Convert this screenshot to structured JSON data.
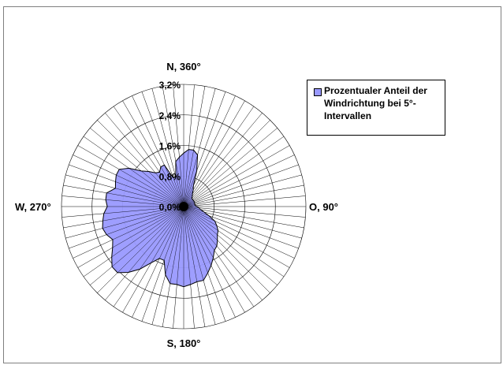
{
  "chart_data": {
    "type": "radar",
    "title": "",
    "direction_labels": {
      "north": "N, 360°",
      "east": "O, 90°",
      "south": "S, 180°",
      "west": "W, 270°"
    },
    "radial_ticks": [
      "0,0%",
      "0,8%",
      "1,6%",
      "2,4%",
      "3,2%"
    ],
    "radial_tick_values": [
      0,
      0.8,
      1.6,
      2.4,
      3.2
    ],
    "rlim": [
      0,
      3.2
    ],
    "angle_step_deg": 5,
    "series": [
      {
        "name": "Prozentualer Anteil der Windrichtung bei 5°-Intervallen",
        "color": "#9999ff",
        "angles_deg": [
          0,
          5,
          10,
          15,
          20,
          25,
          30,
          35,
          40,
          45,
          50,
          55,
          60,
          65,
          70,
          75,
          80,
          85,
          90,
          95,
          100,
          105,
          110,
          115,
          120,
          125,
          130,
          135,
          140,
          145,
          150,
          155,
          160,
          165,
          170,
          175,
          180,
          185,
          190,
          195,
          200,
          205,
          210,
          215,
          220,
          225,
          230,
          235,
          240,
          245,
          250,
          255,
          260,
          265,
          270,
          275,
          280,
          285,
          290,
          295,
          300,
          305,
          310,
          315,
          320,
          325,
          330,
          335,
          340,
          345,
          350,
          355
        ],
        "values": [
          1.4,
          1.5,
          1.5,
          1.4,
          1.0,
          0.6,
          0.5,
          0.4,
          0.35,
          0.3,
          0.3,
          0.3,
          0.3,
          0.3,
          0.3,
          0.3,
          0.3,
          0.3,
          0.35,
          0.4,
          0.45,
          0.55,
          0.7,
          0.9,
          1.0,
          1.1,
          1.15,
          1.25,
          1.35,
          1.4,
          1.55,
          1.7,
          1.85,
          2.0,
          2.0,
          2.05,
          2.1,
          2.05,
          2.05,
          1.85,
          1.5,
          1.5,
          1.7,
          2.0,
          2.25,
          2.45,
          2.45,
          2.3,
          2.15,
          2.05,
          2.15,
          2.2,
          2.15,
          2.1,
          2.0,
          2.05,
          2.05,
          1.85,
          1.9,
          1.95,
          1.95,
          1.75,
          1.45,
          1.3,
          1.15,
          1.1,
          1.2,
          1.2,
          0.8,
          0.8,
          1.2,
          1.3
        ]
      }
    ]
  },
  "legend": {
    "label": "Prozentualer Anteil der Windrichtung bei 5°-Intervallen"
  }
}
